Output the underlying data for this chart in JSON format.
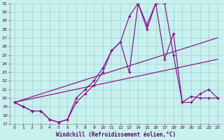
{
  "xlabel": "Windchill (Refroidissement éolien,°C)",
  "bg_color": "#c8f0ee",
  "grid_color": "#a0d8d4",
  "line_color": "#880088",
  "xlim": [
    -0.5,
    23.5
  ],
  "ylim": [
    17,
    31
  ],
  "yticks": [
    17,
    18,
    19,
    20,
    21,
    22,
    23,
    24,
    25,
    26,
    27,
    28,
    29,
    30,
    31
  ],
  "xticks": [
    0,
    1,
    2,
    3,
    4,
    5,
    6,
    7,
    8,
    9,
    10,
    11,
    12,
    13,
    14,
    15,
    16,
    17,
    18,
    19,
    20,
    21,
    22,
    23
  ],
  "line1_x": [
    0,
    1,
    2,
    3,
    4,
    5,
    6,
    7,
    8,
    9,
    10,
    11,
    12,
    13,
    14,
    15,
    16,
    17,
    18,
    19,
    20,
    21,
    22,
    23
  ],
  "line1_y": [
    19.5,
    19.0,
    18.5,
    18.5,
    17.5,
    17.2,
    17.5,
    19.5,
    20.5,
    21.5,
    23.0,
    25.5,
    26.5,
    23.0,
    31.0,
    28.0,
    31.0,
    31.0,
    25.0,
    19.5,
    19.5,
    20.5,
    21.0,
    20.0
  ],
  "line2_x": [
    0,
    1,
    2,
    3,
    4,
    5,
    6,
    7,
    8,
    9,
    10,
    11,
    12,
    13,
    14,
    15,
    16,
    17,
    18,
    19,
    20,
    21,
    22,
    23
  ],
  "line2_y": [
    19.5,
    19.0,
    18.5,
    18.5,
    17.5,
    17.2,
    17.5,
    20.0,
    21.0,
    22.0,
    23.5,
    25.5,
    26.5,
    29.5,
    31.0,
    28.5,
    31.0,
    24.5,
    27.5,
    19.5,
    20.2,
    20.0,
    20.0,
    20.0
  ],
  "trend1_x": [
    0,
    23
  ],
  "trend1_y": [
    19.5,
    27.0
  ],
  "trend2_x": [
    0,
    23
  ],
  "trend2_y": [
    19.5,
    24.5
  ]
}
